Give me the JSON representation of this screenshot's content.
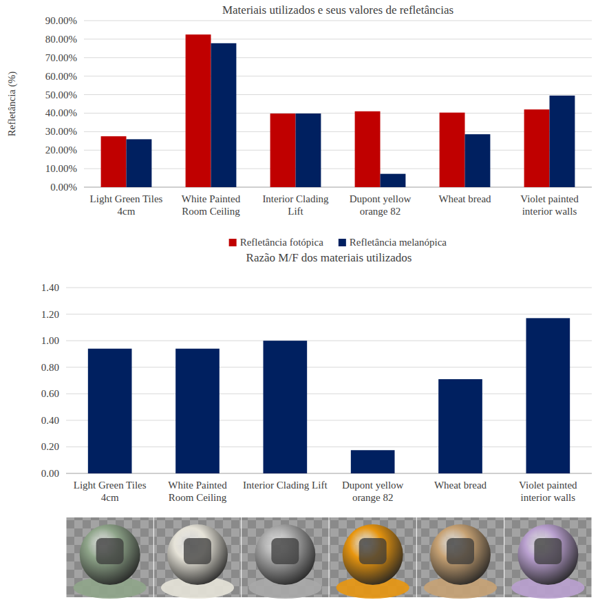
{
  "chart_data": [
    {
      "type": "bar",
      "title": "Materiais utilizados e seus valores de refletâncias",
      "y_label": "Refletância (%)",
      "categories": [
        "Light Green Tiles 4cm",
        "White Painted Room Ceiling",
        "Interior Clading Lift",
        "Dupont yellow orange 82",
        "Wheat bread",
        "Violet painted interior walls"
      ],
      "series": [
        {
          "name": "Refletância fotópica",
          "color": "#c00000",
          "values": [
            27.5,
            82.5,
            39.8,
            41.0,
            40.3,
            42.0
          ]
        },
        {
          "name": "Refletância melanópica",
          "color": "#002060",
          "values": [
            25.9,
            77.8,
            39.8,
            7.2,
            28.6,
            49.5
          ]
        }
      ],
      "ylim": [
        0,
        90
      ],
      "yticks": [
        {
          "value": 0,
          "label": "0.00%"
        },
        {
          "value": 10,
          "label": "10.00%"
        },
        {
          "value": 20,
          "label": "20.00%"
        },
        {
          "value": 30,
          "label": "30.00%"
        },
        {
          "value": 40,
          "label": "40.00%"
        },
        {
          "value": 50,
          "label": "50.00%"
        },
        {
          "value": 60,
          "label": "60.00%"
        },
        {
          "value": 70,
          "label": "70.00%"
        },
        {
          "value": 80,
          "label": "80.00%"
        },
        {
          "value": 90,
          "label": "90.00%"
        }
      ],
      "grid": true,
      "legend": "bottom"
    },
    {
      "type": "bar",
      "title": "Razão M/F dos materiais utilizados",
      "categories": [
        "Light Green Tiles 4cm",
        "White Painted Room Ceiling",
        "Interior Clading Lift",
        "Dupont yellow orange 82",
        "Wheat bread",
        "Violet painted interior walls"
      ],
      "values": [
        0.94,
        0.94,
        1.0,
        0.175,
        0.71,
        1.17
      ],
      "color": "#002060",
      "ylim": [
        0,
        1.4
      ],
      "yticks": [
        {
          "value": 0,
          "label": "0.00"
        },
        {
          "value": 0.2,
          "label": "0.20"
        },
        {
          "value": 0.4,
          "label": "0.40"
        },
        {
          "value": 0.6,
          "label": "0.60"
        },
        {
          "value": 0.8,
          "label": "0.80"
        },
        {
          "value": 1.0,
          "label": "1.00"
        },
        {
          "value": 1.2,
          "label": "1.20"
        },
        {
          "value": 1.4,
          "label": "1.40"
        }
      ],
      "grid": true
    }
  ]
}
